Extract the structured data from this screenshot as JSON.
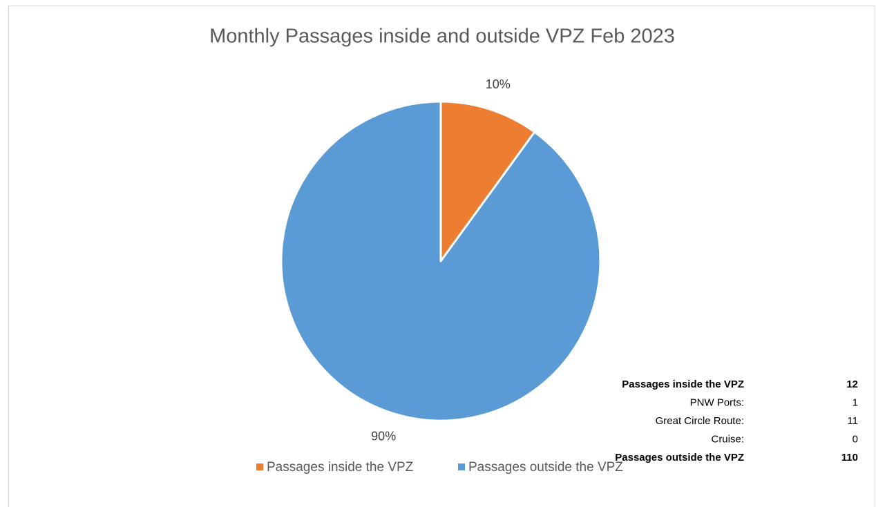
{
  "chart_data": {
    "type": "pie",
    "title": "Monthly Passages inside and outside VPZ Feb 2023",
    "categories": [
      "Passages inside the VPZ",
      "Passages outside the VPZ"
    ],
    "values": [
      10,
      90
    ],
    "value_labels": [
      "10%",
      "90%"
    ],
    "colors": [
      "#ed7d31",
      "#5b9bd5"
    ],
    "legend": "bottom",
    "table": {
      "rows": [
        {
          "label": "Passages inside the VPZ",
          "value": 12,
          "bold": true
        },
        {
          "label": "PNW Ports:",
          "value": 1,
          "bold": false
        },
        {
          "label": "Great Circle Route:",
          "value": 11,
          "bold": false
        },
        {
          "label": "Cruise:",
          "value": 0,
          "bold": false
        },
        {
          "label": "Passages outside the VPZ",
          "value": 110,
          "bold": true
        }
      ]
    }
  }
}
